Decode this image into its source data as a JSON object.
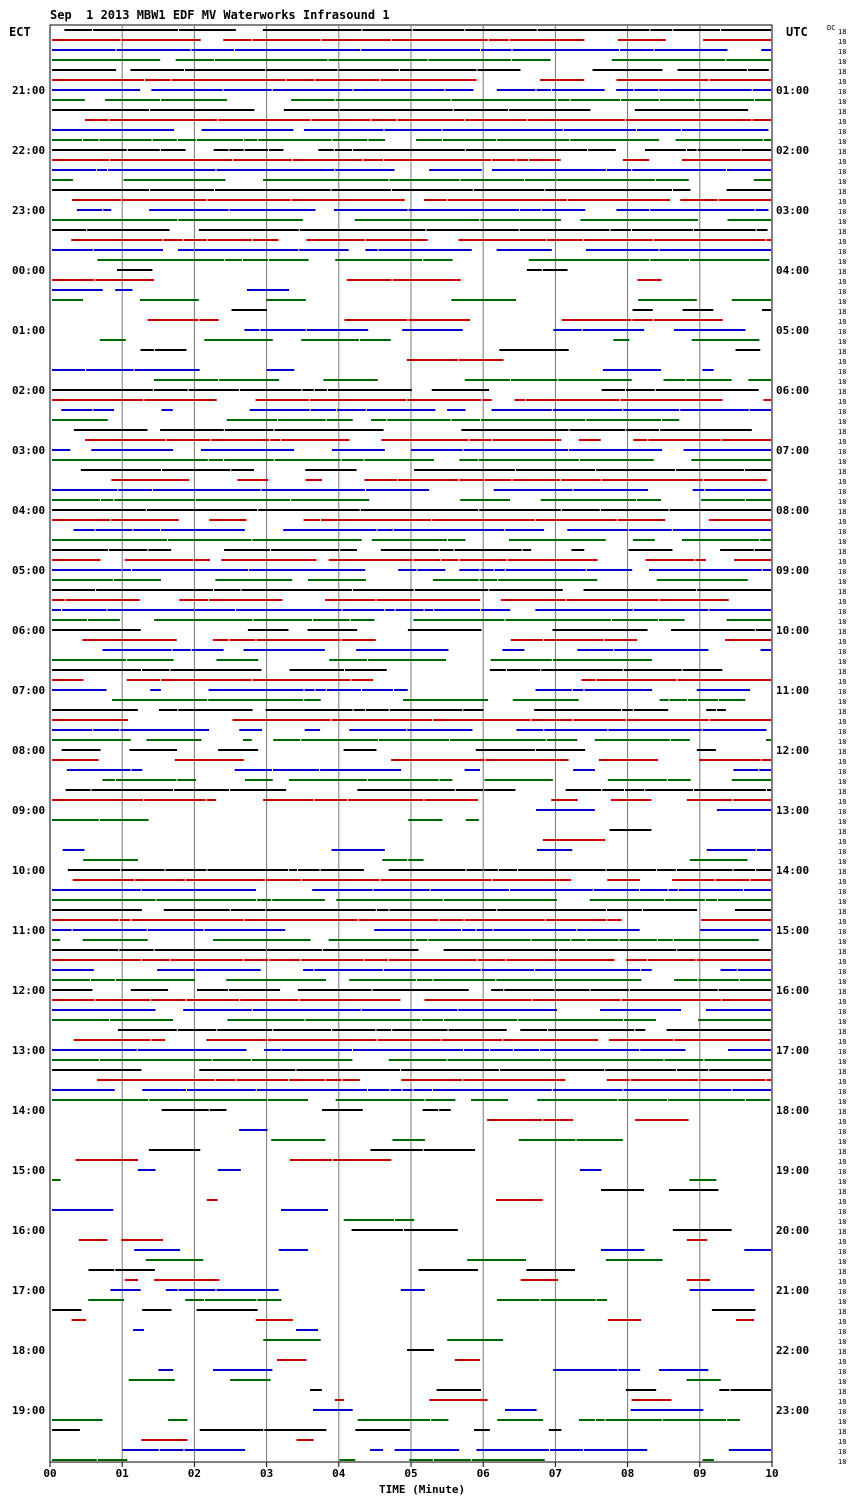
{
  "chart_data": {
    "type": "helicorder",
    "title": "Sep  1 2013 MBW1 EDF MV Waterworks Infrasound 1",
    "left_timezone": "ECT",
    "right_timezone": "UTC",
    "channel_label": "DC",
    "gain_value": "18",
    "xlabel": "TIME (Minute)",
    "xlim": [
      0,
      10
    ],
    "x_ticks": [
      "00",
      "01",
      "02",
      "03",
      "04",
      "05",
      "06",
      "07",
      "08",
      "09",
      "10"
    ],
    "rows_per_hour": 6,
    "row_count": 144,
    "left_hour_labels": [
      "21:00",
      "22:00",
      "23:00",
      "00:00",
      "01:00",
      "02:00",
      "03:00",
      "04:00",
      "05:00",
      "06:00",
      "07:00",
      "08:00",
      "09:00",
      "10:00",
      "11:00",
      "12:00",
      "13:00",
      "14:00",
      "15:00",
      "16:00",
      "17:00",
      "18:00",
      "19:00"
    ],
    "right_hour_labels": [
      "01:00",
      "02:00",
      "03:00",
      "04:00",
      "05:00",
      "06:00",
      "07:00",
      "08:00",
      "09:00",
      "10:00",
      "11:00",
      "12:00",
      "13:00",
      "14:00",
      "15:00",
      "16:00",
      "17:00",
      "18:00",
      "19:00",
      "20:00",
      "21:00",
      "22:00",
      "23:00"
    ],
    "first_labeled_row": 6,
    "trace_colors": [
      "#000000",
      "#cc0000",
      "#0000cc",
      "#006600"
    ],
    "grid": true,
    "note_density": "traces become sparse between 00:00 and 02:00 ECT and after 13:00 ECT"
  }
}
